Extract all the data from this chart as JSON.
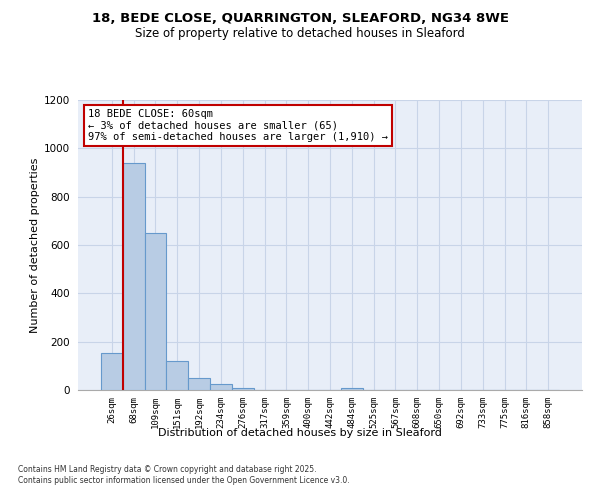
{
  "title1": "18, BEDE CLOSE, QUARRINGTON, SLEAFORD, NG34 8WE",
  "title2": "Size of property relative to detached houses in Sleaford",
  "xlabel": "Distribution of detached houses by size in Sleaford",
  "ylabel": "Number of detached properties",
  "categories": [
    "26sqm",
    "68sqm",
    "109sqm",
    "151sqm",
    "192sqm",
    "234sqm",
    "276sqm",
    "317sqm",
    "359sqm",
    "400sqm",
    "442sqm",
    "484sqm",
    "525sqm",
    "567sqm",
    "608sqm",
    "650sqm",
    "692sqm",
    "733sqm",
    "775sqm",
    "816sqm",
    "858sqm"
  ],
  "values": [
    155,
    940,
    650,
    120,
    50,
    25,
    10,
    0,
    0,
    0,
    0,
    8,
    0,
    0,
    0,
    0,
    0,
    0,
    0,
    0,
    0
  ],
  "bar_color": "#b8cce4",
  "bar_edge_color": "#6699cc",
  "vline_color": "#c00000",
  "vline_x": 0.5,
  "annotation_text": "18 BEDE CLOSE: 60sqm\n← 3% of detached houses are smaller (65)\n97% of semi-detached houses are larger (1,910) →",
  "annotation_edgecolor": "#c00000",
  "ylim": [
    0,
    1200
  ],
  "yticks": [
    0,
    200,
    400,
    600,
    800,
    1000,
    1200
  ],
  "bg_color": "#e8eef8",
  "grid_color": "#c8d4e8",
  "footer1": "Contains HM Land Registry data © Crown copyright and database right 2025.",
  "footer2": "Contains public sector information licensed under the Open Government Licence v3.0."
}
